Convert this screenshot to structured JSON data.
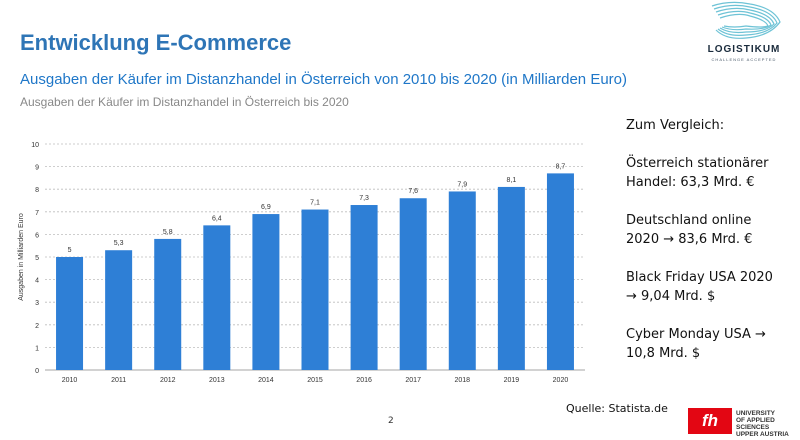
{
  "slide": {
    "title": "Entwicklung E-Commerce",
    "page_number": "2",
    "source": "Quelle: Statista.de"
  },
  "logo": {
    "name": "LOGISTIKUM",
    "tagline": "CHALLENGE ACCEPTED"
  },
  "university_logo": {
    "mark": "fh",
    "lines": [
      "UNIVERSITY",
      "OF APPLIED SCIENCES",
      "UPPER AUSTRIA"
    ]
  },
  "sidebar": {
    "heading": "Zum Vergleich:",
    "items": [
      {
        "lines": [
          "Österreich stationärer",
          "Handel: 63,3 Mrd. €"
        ]
      },
      {
        "lines": [
          "Deutschland online",
          "2020 → 83,6 Mrd. €"
        ]
      },
      {
        "lines": [
          "Black Friday USA 2020",
          "→ 9,04 Mrd. $"
        ]
      },
      {
        "lines": [
          "Cyber Monday USA →",
          "10,8 Mrd. $"
        ]
      }
    ]
  },
  "colors": {
    "bar": "#2e7fd6",
    "title": "#2e75b6",
    "chart_title": "#1f77c8"
  },
  "chart_data": {
    "type": "bar",
    "title": "Ausgaben der Käufer im Distanzhandel in Österreich von 2010 bis 2020 (in Milliarden Euro)",
    "subtitle": "Ausgaben der Käufer im Distanzhandel in Österreich bis 2020",
    "xlabel": "",
    "ylabel": "Ausgaben in Milliarden Euro",
    "categories": [
      "2010",
      "2011",
      "2012",
      "2013",
      "2014",
      "2015",
      "2016",
      "2017",
      "2018",
      "2019",
      "2020"
    ],
    "values": [
      5,
      5.3,
      5.8,
      6.4,
      6.9,
      7.1,
      7.3,
      7.6,
      7.9,
      8.1,
      8.7
    ],
    "value_labels": [
      "5",
      "5,3",
      "5,8",
      "6,4",
      "6,9",
      "7,1",
      "7,3",
      "7,6",
      "7,9",
      "8,1",
      "8,7"
    ],
    "ylim": [
      0,
      10
    ],
    "yticks": [
      "0",
      "1",
      "2",
      "3",
      "4",
      "5",
      "6",
      "7",
      "8",
      "9",
      "10"
    ],
    "grid": true,
    "legend": "none"
  }
}
